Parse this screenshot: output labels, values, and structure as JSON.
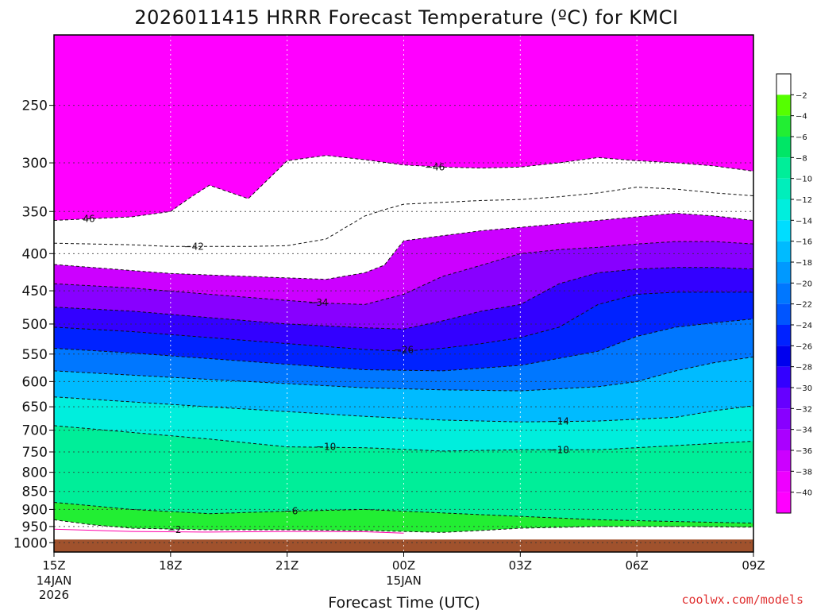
{
  "chart_data": {
    "type": "contour-filled",
    "title": "2026011415 HRRR Forecast Temperature (ºC) for KMCI",
    "xlabel": "Forecast Time (UTC)",
    "ylabel": "",
    "x_ticks": [
      {
        "label": "15Z",
        "sub": [
          "14JAN",
          "2026"
        ],
        "hour": 0
      },
      {
        "label": "18Z",
        "sub": [],
        "hour": 3
      },
      {
        "label": "21Z",
        "sub": [],
        "hour": 6
      },
      {
        "label": "00Z",
        "sub": [
          "15JAN"
        ],
        "hour": 9
      },
      {
        "label": "03Z",
        "sub": [],
        "hour": 12
      },
      {
        "label": "06Z",
        "sub": [],
        "hour": 15
      },
      {
        "label": "09Z",
        "sub": [],
        "hour": 18
      }
    ],
    "x_range_hours": [
      0,
      18
    ],
    "y_ticks": [
      250,
      300,
      350,
      400,
      450,
      500,
      550,
      600,
      650,
      700,
      750,
      800,
      850,
      900,
      950,
      1000
    ],
    "y_range_hPa": [
      200,
      1030
    ],
    "y_scale": "log-pressure",
    "surface_pressure_hPa": 990,
    "colorbar": {
      "levels": [
        -2,
        -4,
        -6,
        -8,
        -10,
        -12,
        -14,
        -16,
        -18,
        -20,
        -22,
        -24,
        -26,
        -28,
        -30,
        -32,
        -34,
        -36,
        -38,
        -40
      ],
      "colors": [
        "#ffffff",
        "#55ff00",
        "#22ee33",
        "#00e666",
        "#00ee99",
        "#00eebb",
        "#00eedd",
        "#00ddff",
        "#00bbff",
        "#0099ff",
        "#0077ff",
        "#0055ff",
        "#0022ff",
        "#0000ee",
        "#3300ff",
        "#6600ff",
        "#8800ff",
        "#aa00ff",
        "#cc00ff",
        "#ee00ff",
        "#ff00ff"
      ]
    },
    "contours": [
      {
        "value": -46,
        "hours": [
          0,
          1,
          2,
          3,
          3.5,
          4,
          5,
          6,
          7,
          8,
          9,
          10,
          11,
          12,
          13,
          14,
          15,
          16,
          17,
          18
        ],
        "pressure": [
          360,
          358,
          356,
          350,
          335,
          322,
          336,
          298,
          293,
          297,
          302,
          304,
          305,
          304,
          300,
          295,
          298,
          300,
          303,
          308
        ]
      },
      {
        "value": -42,
        "hours": [
          0,
          1,
          2,
          3,
          4,
          5,
          6,
          7,
          8,
          8.5,
          9,
          10,
          11,
          12,
          13,
          14,
          15,
          16,
          17,
          18
        ],
        "pressure": [
          387,
          388,
          389,
          391,
          391,
          391,
          390,
          382,
          355,
          348,
          342,
          340,
          338,
          337,
          334,
          330,
          324,
          326,
          330,
          333
        ]
      },
      {
        "value": -38,
        "hours": [
          0,
          1,
          2,
          3,
          4,
          5,
          6,
          7,
          8,
          8.5,
          9,
          10,
          11,
          12,
          13,
          14,
          15,
          16,
          17,
          18
        ],
        "pressure": [
          414,
          418,
          422,
          426,
          428,
          430,
          432,
          434,
          425,
          415,
          384,
          378,
          372,
          368,
          364,
          360,
          356,
          352,
          355,
          360
        ]
      },
      {
        "value": -34,
        "hours": [
          0,
          2,
          4,
          6,
          7,
          8,
          9,
          10,
          11,
          12,
          13,
          14,
          15,
          16,
          17,
          18
        ],
        "pressure": [
          440,
          446,
          455,
          464,
          468,
          470,
          455,
          430,
          415,
          400,
          395,
          392,
          388,
          385,
          385,
          388
        ]
      },
      {
        "value": -30,
        "hours": [
          0,
          2,
          4,
          6,
          8,
          9,
          10,
          11,
          12,
          13,
          14,
          15,
          16,
          17,
          18
        ],
        "pressure": [
          474,
          480,
          490,
          500,
          506,
          508,
          495,
          480,
          470,
          440,
          425,
          420,
          418,
          418,
          420
        ]
      },
      {
        "value": -26,
        "hours": [
          0,
          2,
          4,
          6,
          8,
          9,
          10,
          11,
          12,
          13,
          14,
          15,
          16,
          17,
          18
        ],
        "pressure": [
          505,
          512,
          522,
          532,
          542,
          545,
          540,
          532,
          522,
          505,
          470,
          455,
          452,
          452,
          452
        ]
      },
      {
        "value": -22,
        "hours": [
          0,
          2,
          4,
          6,
          8,
          10,
          12,
          14,
          15,
          16,
          17,
          18
        ],
        "pressure": [
          540,
          548,
          558,
          568,
          578,
          580,
          570,
          545,
          520,
          505,
          498,
          492
        ]
      },
      {
        "value": -18,
        "hours": [
          0,
          2,
          4,
          6,
          8,
          10,
          12,
          14,
          15,
          16,
          17,
          18
        ],
        "pressure": [
          580,
          588,
          596,
          604,
          612,
          616,
          618,
          610,
          600,
          580,
          565,
          555
        ]
      },
      {
        "value": -14,
        "hours": [
          0,
          2,
          4,
          6,
          8,
          10,
          12,
          14,
          16,
          17,
          18
        ],
        "pressure": [
          630,
          640,
          650,
          660,
          670,
          678,
          682,
          680,
          672,
          658,
          648
        ]
      },
      {
        "value": -10,
        "hours": [
          0,
          2,
          4,
          6,
          8,
          10,
          12,
          14,
          16,
          18
        ],
        "pressure": [
          690,
          705,
          720,
          738,
          740,
          748,
          745,
          745,
          735,
          725
        ]
      },
      {
        "value": -6,
        "hours": [
          0,
          2,
          4,
          6,
          8,
          10,
          12,
          14,
          16,
          18
        ],
        "pressure": [
          880,
          900,
          912,
          905,
          900,
          910,
          920,
          930,
          935,
          940
        ]
      },
      {
        "value": -2,
        "hours": [
          0,
          1,
          2,
          4,
          6,
          8,
          9,
          10,
          11,
          12,
          14,
          16,
          18
        ],
        "pressure": [
          930,
          945,
          955,
          960,
          960,
          962,
          965,
          968,
          962,
          955,
          950,
          950,
          952
        ]
      }
    ],
    "contour_labels": [
      {
        "text": "46",
        "hour": 0.9,
        "pressure": 358
      },
      {
        "text": "−42",
        "hour": 3.6,
        "pressure": 391
      },
      {
        "text": "−46",
        "hour": 9.8,
        "pressure": 304
      },
      {
        "text": "−34",
        "hour": 6.8,
        "pressure": 467
      },
      {
        "text": "−26",
        "hour": 9.0,
        "pressure": 543
      },
      {
        "text": "−14",
        "hour": 13.0,
        "pressure": 681
      },
      {
        "text": "−10",
        "hour": 7.0,
        "pressure": 738
      },
      {
        "text": "−10",
        "hour": 13.0,
        "pressure": 745
      },
      {
        "text": "−6",
        "hour": 6.1,
        "pressure": 905
      },
      {
        "text": "−2",
        "hour": 3.1,
        "pressure": 960
      }
    ]
  },
  "credit": "coolwx.com/models",
  "colors": {
    "frame": "#000000",
    "ground": "#a0522d",
    "credit": "#e03030",
    "contour": "#111111",
    "warm_line": "#ff00aa"
  }
}
